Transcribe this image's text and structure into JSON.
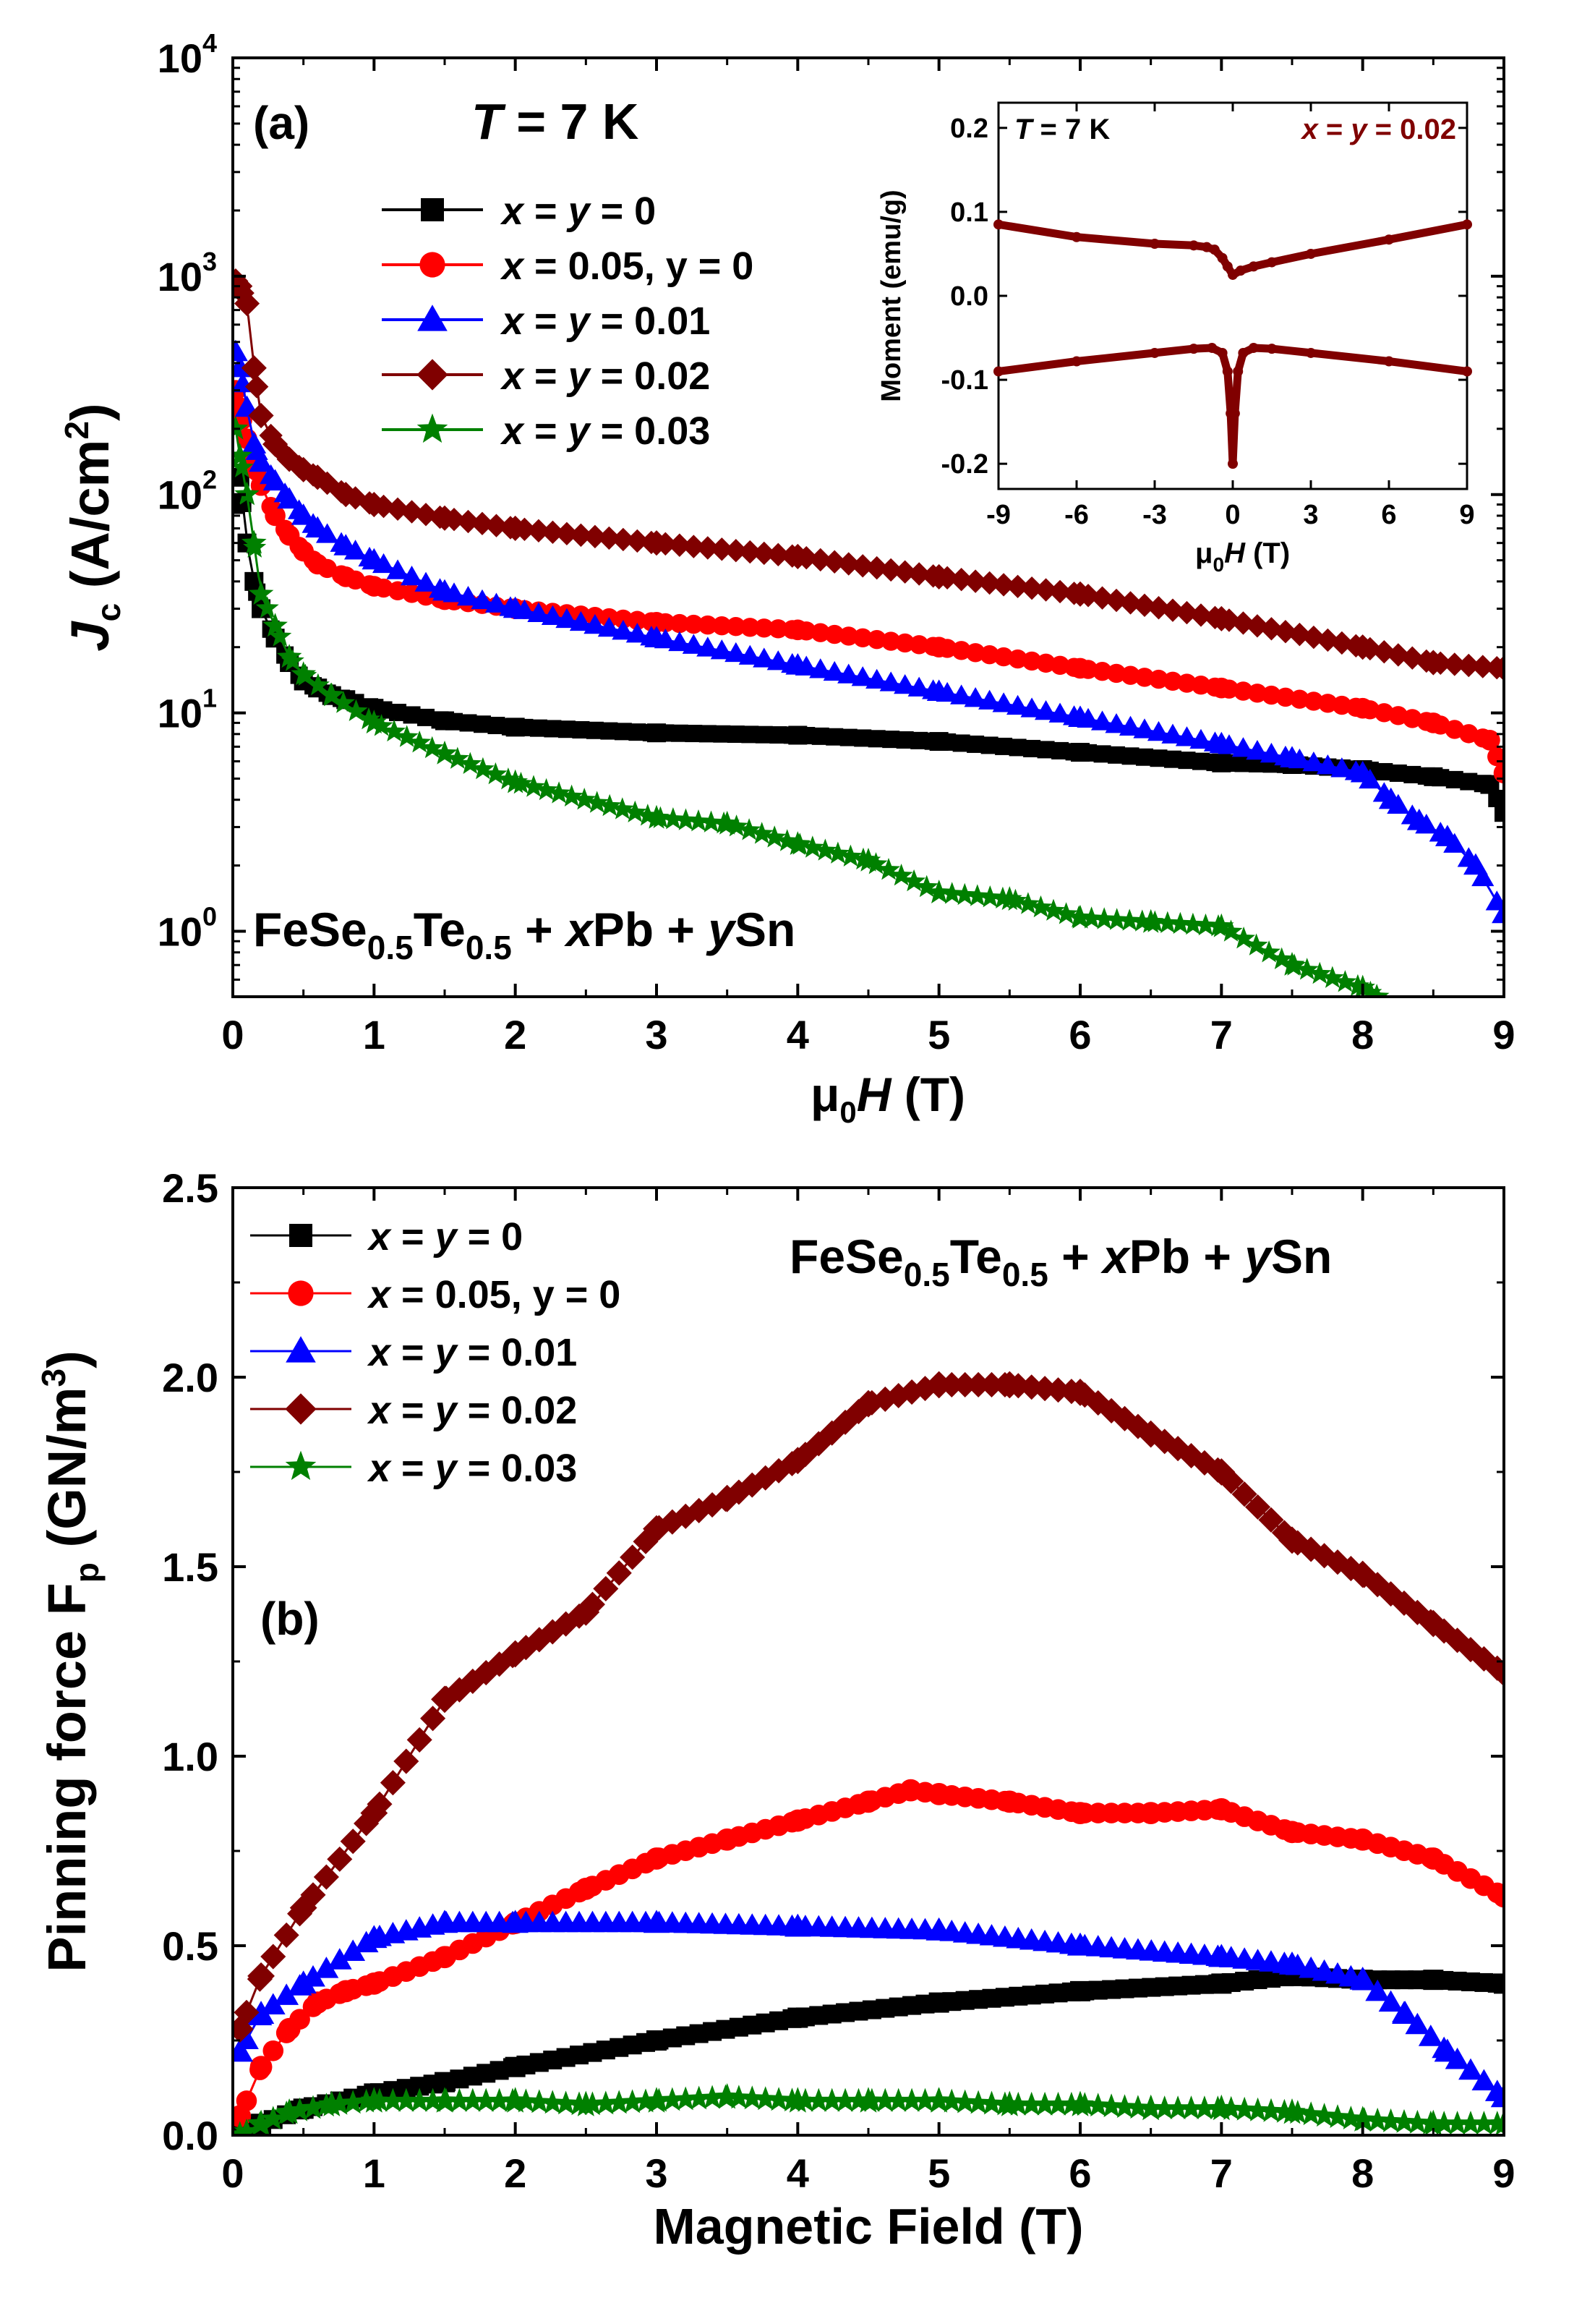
{
  "chart_data": [
    {
      "id": "a",
      "type": "line",
      "panel_label": "(a)",
      "title": "T = 7 K",
      "title_parts": {
        "var": "T",
        "rest": " = 7 K"
      },
      "xlabel_parts": {
        "mu": "μ",
        "sub": "0",
        "var": "H",
        "rest": " (T)"
      },
      "ylabel_parts": {
        "var": "J",
        "sub": "c",
        "rest": " (A/cm",
        "sup": "2",
        "close": ")"
      },
      "xlim": [
        0,
        9
      ],
      "ylim_log10": [
        -0.3,
        4
      ],
      "yscale": "log",
      "xticks": [
        0,
        1,
        2,
        3,
        4,
        5,
        6,
        7,
        8,
        9
      ],
      "yticks": [
        {
          "exp": 0,
          "base": "10",
          "power": "0"
        },
        {
          "exp": 1,
          "base": "10",
          "power": "1"
        },
        {
          "exp": 2,
          "base": "10",
          "power": "2"
        },
        {
          "exp": 3,
          "base": "10",
          "power": "3"
        },
        {
          "exp": 4,
          "base": "10",
          "power": "4"
        }
      ],
      "composition_label": {
        "a": "FeSe",
        "s1": "0.5",
        "b": "Te",
        "s2": "0.5",
        "c": " + ",
        "x": "x",
        "d": "Pb + ",
        "y": "y",
        "e": "Sn"
      },
      "legend_position": "upper-left",
      "series": [
        {
          "name": "x = y = 0",
          "label_parts": [
            "x",
            " = ",
            "y",
            " = 0"
          ],
          "color": "#000000",
          "marker": "square",
          "x": [
            0.02,
            0.05,
            0.1,
            0.15,
            0.2,
            0.3,
            0.4,
            0.5,
            0.6,
            0.7,
            0.8,
            1.0,
            1.5,
            2.0,
            3.0,
            4.0,
            5.0,
            6.0,
            7.0,
            7.5,
            8.0,
            8.5,
            8.9,
            9.0
          ],
          "y": [
            90,
            120,
            60,
            40,
            30,
            22,
            17,
            14,
            13,
            12,
            11.5,
            10.5,
            9.2,
            8.6,
            8.1,
            7.9,
            7.4,
            6.6,
            5.9,
            5.8,
            5.5,
            5.1,
            4.7,
            3.5
          ]
        },
        {
          "name": "x = 0.05, y = 0",
          "label_parts": [
            "x",
            " = 0.05, y = 0"
          ],
          "color": "#ff0000",
          "marker": "circle",
          "x": [
            0.02,
            0.05,
            0.1,
            0.15,
            0.2,
            0.3,
            0.4,
            0.5,
            0.6,
            0.8,
            1.0,
            1.5,
            2.0,
            3.0,
            4.0,
            5.0,
            6.0,
            7.0,
            8.0,
            8.5,
            8.9,
            9.0
          ],
          "y": [
            300,
            250,
            180,
            140,
            110,
            80,
            65,
            55,
            48,
            42,
            38,
            33,
            30,
            26,
            24,
            20,
            16,
            13,
            10.5,
            9,
            7.5,
            5.3
          ]
        },
        {
          "name": "x = y = 0.01",
          "label_parts": [
            "x",
            " = ",
            "y",
            " = 0.01"
          ],
          "color": "#0000ff",
          "marker": "triangle",
          "x": [
            0.02,
            0.05,
            0.1,
            0.15,
            0.2,
            0.3,
            0.4,
            0.5,
            0.6,
            0.8,
            1.0,
            1.5,
            2.0,
            3.0,
            4.0,
            5.0,
            6.0,
            7.0,
            7.5,
            8.0,
            8.2,
            8.4,
            8.6,
            8.8,
            9.0
          ],
          "y": [
            450,
            380,
            250,
            170,
            140,
            115,
            95,
            80,
            70,
            58,
            50,
            36,
            30,
            22,
            16.5,
            12.5,
            9.5,
            7.2,
            6.2,
            5.3,
            4.0,
            3.2,
            2.7,
            2.0,
            1.2
          ]
        },
        {
          "name": "x = y = 0.02",
          "label_parts": [
            "x",
            " = ",
            "y",
            " = 0.02"
          ],
          "color": "#800000",
          "marker": "diamond",
          "x": [
            0.02,
            0.05,
            0.1,
            0.15,
            0.2,
            0.3,
            0.4,
            0.5,
            0.6,
            0.8,
            1.0,
            1.5,
            2.0,
            3.0,
            4.0,
            5.0,
            6.0,
            7.0,
            8.0,
            8.5,
            9.0
          ],
          "y": [
            950,
            900,
            750,
            380,
            230,
            170,
            145,
            130,
            120,
            100,
            90,
            78,
            70,
            60,
            52,
            42,
            35,
            27,
            20,
            17,
            16
          ]
        },
        {
          "name": "x = y = 0.03",
          "label_parts": [
            "x",
            " = ",
            "y",
            " = 0.03"
          ],
          "color": "#008000",
          "marker": "star",
          "x": [
            0.02,
            0.05,
            0.1,
            0.15,
            0.2,
            0.3,
            0.4,
            0.5,
            0.7,
            1.0,
            1.5,
            2.0,
            3.0,
            3.5,
            4.0,
            4.5,
            5.0,
            5.5,
            6.0,
            6.5,
            7.0,
            7.5,
            8.0,
            8.1
          ],
          "y": [
            200,
            150,
            100,
            60,
            35,
            25,
            18,
            15,
            12,
            9,
            6.5,
            4.8,
            3.3,
            3.1,
            2.5,
            2.1,
            1.5,
            1.4,
            1.15,
            1.1,
            1.05,
            0.7,
            0.55,
            0.5
          ]
        }
      ],
      "inset": {
        "type": "line",
        "title": "T = 7 K",
        "title_parts": {
          "var": "T",
          "rest": " = 7 K"
        },
        "label": "x = y = 0.02",
        "label_parts": [
          "x",
          " = ",
          "y",
          " = 0.02"
        ],
        "label_color": "#800000",
        "xlabel_parts": {
          "mu": "μ",
          "sub": "0",
          "var": "H",
          "rest": " (T)"
        },
        "ylabel": "Moment (emu/g)",
        "xlim": [
          -9,
          9
        ],
        "ylim": [
          -0.23,
          0.23
        ],
        "xticks": [
          -9,
          -6,
          -3,
          0,
          3,
          6,
          9
        ],
        "xtick_labels": [
          "-9",
          "-6",
          "-3",
          "0",
          "3",
          "6",
          "9"
        ],
        "yticks": [
          -0.2,
          -0.1,
          0.0,
          0.1,
          0.2
        ],
        "ytick_labels": [
          "-0.2",
          "-0.1",
          "0.0",
          "0.1",
          "0.2"
        ],
        "color": "#800000",
        "upper_branch": {
          "x": [
            -9,
            -6,
            -3,
            -1.5,
            -1.0,
            -0.7,
            -0.4,
            -0.2,
            0.0,
            0.3,
            0.8,
            1.5,
            3,
            6,
            9
          ],
          "y": [
            0.085,
            0.07,
            0.062,
            0.06,
            0.058,
            0.055,
            0.045,
            0.035,
            0.025,
            0.03,
            0.035,
            0.04,
            0.05,
            0.067,
            0.085
          ]
        },
        "lower_branch": {
          "x": [
            -9,
            -6,
            -3,
            -1.5,
            -0.8,
            -0.4,
            -0.2,
            -0.08,
            0.0,
            0.08,
            0.2,
            0.4,
            0.8,
            1.5,
            3,
            6,
            9
          ],
          "y": [
            -0.09,
            -0.078,
            -0.068,
            -0.063,
            -0.062,
            -0.068,
            -0.09,
            -0.14,
            -0.2,
            -0.14,
            -0.09,
            -0.068,
            -0.062,
            -0.063,
            -0.068,
            -0.078,
            -0.09
          ]
        }
      }
    },
    {
      "id": "b",
      "type": "line",
      "panel_label": "(b)",
      "xlabel": "Magnetic Field (T)",
      "ylabel_parts": {
        "a": "Pinning force F",
        "sub": "p",
        "rest": " (GN/m",
        "sup": "3",
        "close": ")"
      },
      "xlim": [
        0,
        9
      ],
      "ylim": [
        0,
        2.5
      ],
      "xticks": [
        0,
        1,
        2,
        3,
        4,
        5,
        6,
        7,
        8,
        9
      ],
      "yticks": [
        0.0,
        0.5,
        1.0,
        1.5,
        2.0,
        2.5
      ],
      "ytick_labels": [
        "0.0",
        "0.5",
        "1.0",
        "1.5",
        "2.0",
        "2.5"
      ],
      "composition_label": {
        "a": "FeSe",
        "s1": "0.5",
        "b": "Te",
        "s2": "0.5",
        "c": " + ",
        "x": "x",
        "d": "Pb + ",
        "y": "y",
        "e": "Sn"
      },
      "legend_position": "upper-left",
      "series": [
        {
          "name": "x = y = 0",
          "label_parts": [
            "x",
            " = ",
            "y",
            " = 0"
          ],
          "color": "#000000",
          "marker": "square",
          "x": [
            0.05,
            0.2,
            0.5,
            1.0,
            1.5,
            2.0,
            3.0,
            4.0,
            5.0,
            6.0,
            7.0,
            7.5,
            8.0,
            8.5,
            9.0
          ],
          "y": [
            0.0,
            0.03,
            0.07,
            0.11,
            0.14,
            0.18,
            0.25,
            0.31,
            0.35,
            0.38,
            0.4,
            0.42,
            0.41,
            0.41,
            0.4
          ]
        },
        {
          "name": "x = 0.05, y = 0",
          "label_parts": [
            "x",
            " = 0.05, y = 0"
          ],
          "color": "#ff0000",
          "marker": "circle",
          "x": [
            0.05,
            0.2,
            0.4,
            0.6,
            0.8,
            1.0,
            1.5,
            2.0,
            2.5,
            3.0,
            3.5,
            4.0,
            4.5,
            4.8,
            5.0,
            5.5,
            6.0,
            6.5,
            7.0,
            7.5,
            8.0,
            8.5,
            9.0
          ],
          "y": [
            0.05,
            0.18,
            0.28,
            0.35,
            0.38,
            0.4,
            0.47,
            0.56,
            0.65,
            0.73,
            0.78,
            0.83,
            0.88,
            0.91,
            0.9,
            0.88,
            0.85,
            0.85,
            0.86,
            0.8,
            0.78,
            0.73,
            0.63
          ]
        },
        {
          "name": "x = y = 0.01",
          "label_parts": [
            "x",
            " = ",
            "y",
            " = 0.01"
          ],
          "color": "#0000ff",
          "marker": "triangle",
          "x": [
            0.05,
            0.2,
            0.5,
            1.0,
            1.5,
            2.0,
            3.0,
            4.0,
            5.0,
            6.0,
            7.0,
            7.5,
            8.0,
            8.3,
            8.6,
            9.0
          ],
          "y": [
            0.22,
            0.32,
            0.4,
            0.52,
            0.56,
            0.56,
            0.56,
            0.55,
            0.54,
            0.5,
            0.47,
            0.45,
            0.41,
            0.32,
            0.22,
            0.1
          ]
        },
        {
          "name": "x = y = 0.02",
          "label_parts": [
            "x",
            " = ",
            "y",
            " = 0.02"
          ],
          "color": "#800000",
          "marker": "diamond",
          "x": [
            0.05,
            0.2,
            0.5,
            1.0,
            1.5,
            2.0,
            2.5,
            3.0,
            3.5,
            4.0,
            4.5,
            5.0,
            5.5,
            6.0,
            6.5,
            7.0,
            7.5,
            8.0,
            8.5,
            9.0
          ],
          "y": [
            0.28,
            0.42,
            0.6,
            0.85,
            1.15,
            1.27,
            1.38,
            1.6,
            1.68,
            1.78,
            1.93,
            1.98,
            1.98,
            1.96,
            1.85,
            1.75,
            1.57,
            1.48,
            1.35,
            1.22
          ]
        },
        {
          "name": "x = y = 0.03",
          "label_parts": [
            "x",
            " = ",
            "y",
            " = 0.03"
          ],
          "color": "#008000",
          "marker": "star",
          "x": [
            0.05,
            0.2,
            0.4,
            0.7,
            1.0,
            1.5,
            2.0,
            2.5,
            3.0,
            3.5,
            4.0,
            4.5,
            5.0,
            5.5,
            6.0,
            6.5,
            7.0,
            7.5,
            8.0,
            8.5,
            9.0
          ],
          "y": [
            0.0,
            0.03,
            0.06,
            0.08,
            0.09,
            0.09,
            0.09,
            0.08,
            0.09,
            0.1,
            0.09,
            0.09,
            0.09,
            0.08,
            0.08,
            0.07,
            0.07,
            0.06,
            0.04,
            0.03,
            0.03
          ]
        }
      ]
    }
  ]
}
